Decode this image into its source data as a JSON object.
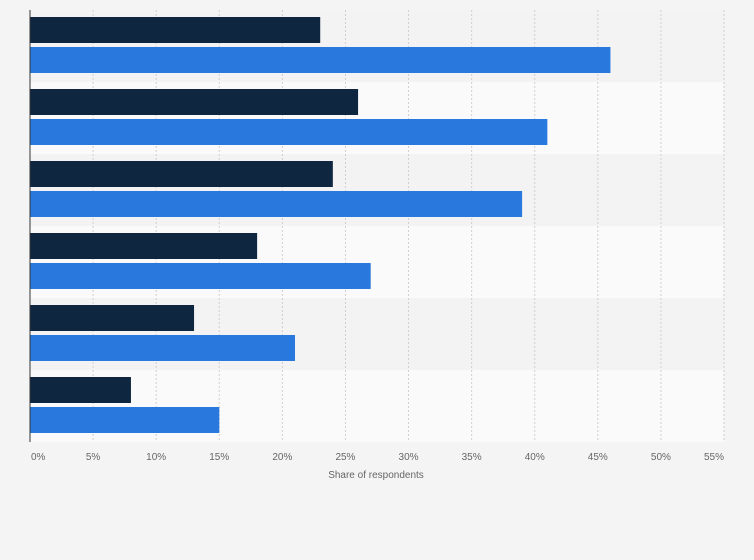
{
  "chart_data": {
    "type": "bar",
    "orientation": "horizontal",
    "categories": [
      "",
      "",
      "",
      "",
      "",
      ""
    ],
    "series": [
      {
        "color": "#0f2640",
        "values": [
          23,
          26,
          24,
          18,
          13,
          8
        ]
      },
      {
        "color": "#2878de",
        "values": [
          46,
          41,
          39,
          27,
          21,
          15
        ]
      }
    ],
    "xlabel": "Share of respondents",
    "xlim": [
      0,
      55
    ],
    "x_ticks": [
      0,
      5,
      10,
      15,
      20,
      25,
      30,
      35,
      40,
      45,
      50,
      55
    ],
    "x_tick_labels": [
      "0%",
      "5%",
      "10%",
      "15%",
      "20%",
      "25%",
      "30%",
      "35%",
      "40%",
      "45%",
      "50%",
      "55%"
    ],
    "grid": true,
    "legend": "none"
  }
}
